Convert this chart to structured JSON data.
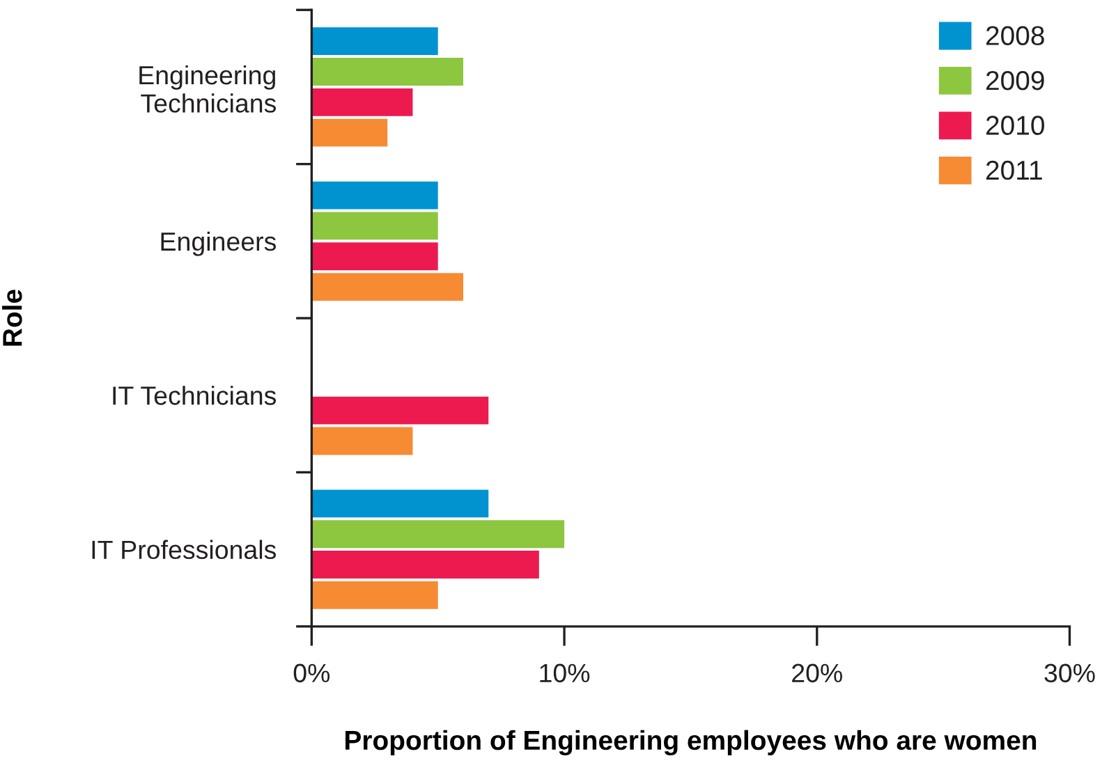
{
  "chart_data": {
    "type": "bar",
    "orientation": "horizontal",
    "xlabel": "Proportion of Engineering employees who are women",
    "ylabel": "Role",
    "categories": [
      "Engineering\nTechnicians",
      "Engineers",
      "IT Technicians",
      "IT Professionals"
    ],
    "series": [
      {
        "name": "2008",
        "color": "#0093d0",
        "values": [
          5,
          5,
          null,
          7
        ]
      },
      {
        "name": "2009",
        "color": "#8dc63f",
        "values": [
          6,
          5,
          null,
          10
        ]
      },
      {
        "name": "2010",
        "color": "#ed1a4f",
        "values": [
          4,
          5,
          7,
          9
        ]
      },
      {
        "name": "2011",
        "color": "#f68b33",
        "values": [
          3,
          6,
          4,
          5
        ]
      }
    ],
    "xlim": [
      0,
      30
    ],
    "xticks": [
      {
        "value": 0,
        "label": "0%"
      },
      {
        "value": 10,
        "label": "10%"
      },
      {
        "value": 20,
        "label": "20%"
      },
      {
        "value": 30,
        "label": "30%"
      }
    ],
    "legend": "top right"
  }
}
